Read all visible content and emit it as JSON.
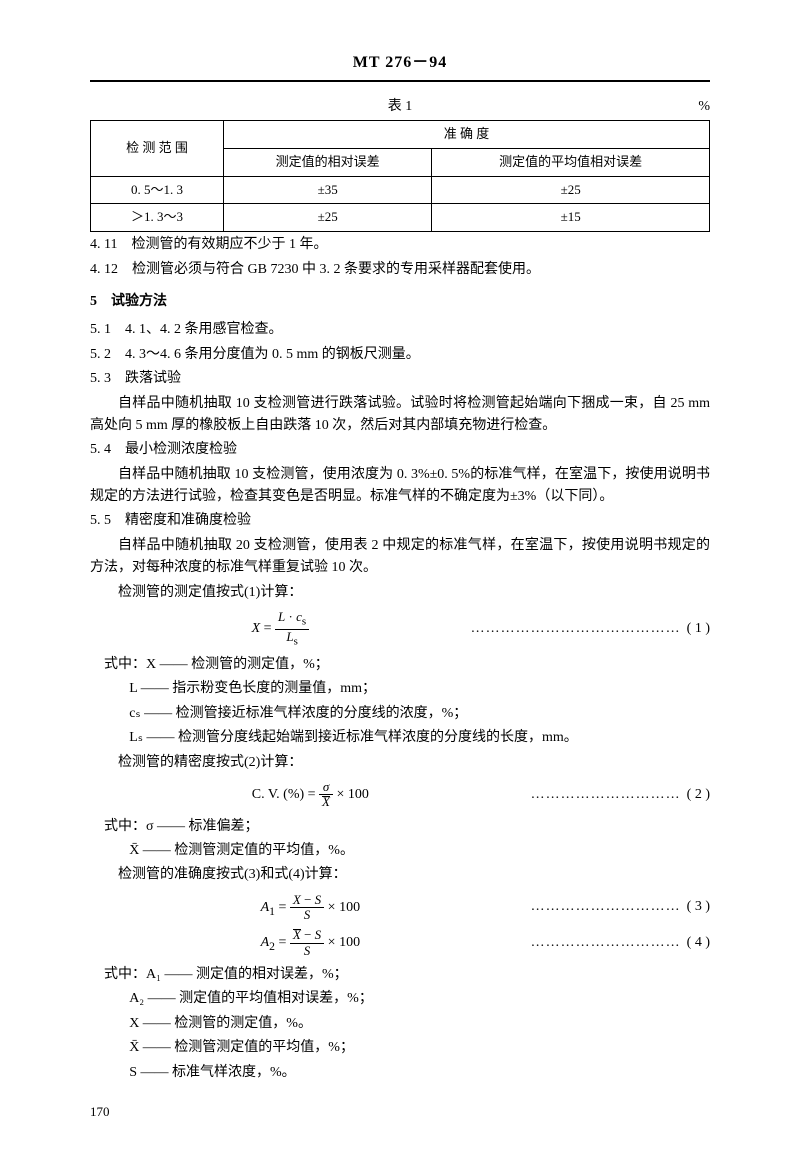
{
  "header": {
    "code": "MT 276－94"
  },
  "table1": {
    "caption": "表 1",
    "unit": "%",
    "h_range": "检 测 范 围",
    "h_acc": "准 确 度",
    "h_rel": "测定值的相对误差",
    "h_avg": "测定值的平均值相对误差",
    "r1c1": "0. 5～1. 3",
    "r1c2": "±35",
    "r1c3": "±25",
    "r2c1": "＞1. 3～3",
    "r2c2": "±25",
    "r2c3": "±15"
  },
  "p411": "4. 11　检测管的有效期应不少于 1 年。",
  "p412": "4. 12　检测管必须与符合 GB 7230 中 3. 2 条要求的专用采样器配套使用。",
  "s5": "5　试验方法",
  "p51": "5. 1　4. 1、4. 2 条用感官检查。",
  "p52": "5. 2　4. 3～4. 6 条用分度值为 0. 5 mm 的钢板尺测量。",
  "p53": "5. 3　跌落试验",
  "p53b": "自样品中随机抽取 10 支检测管进行跌落试验。试验时将检测管起始端向下捆成一束，自 25 mm 高处向 5 mm 厚的橡胶板上自由跌落 10 次，然后对其内部填充物进行检查。",
  "p54": "5. 4　最小检测浓度检验",
  "p54b": "自样品中随机抽取 10 支检测管，使用浓度为 0. 3%±0. 5%的标准气样，在室温下，按使用说明书规定的方法进行试验，检查其变色是否明显。标准气样的不确定度为±3%（以下同）。",
  "p55": "5. 5　精密度和准确度检验",
  "p55b": "自样品中随机抽取 20 支检测管，使用表 2 中规定的标准气样，在室温下，按使用说明书规定的方法，对每种浓度的标准气样重复试验 10 次。",
  "p55c": "检测管的测定值按式(1)计算：",
  "eq1_no": "( 1 )",
  "defs_intro": "式中：X —— 检测管的测定值，%；",
  "defL": "L —— 指示粉变色长度的测量值，mm；",
  "defcs": "cₛ —— 检测管接近标准气样浓度的分度线的浓度，%；",
  "defLs": "Lₛ —— 检测管分度线起始端到接近标准气样浓度的分度线的长度，mm。",
  "p_prec": "检测管的精密度按式(2)计算：",
  "eq2_no": "( 2 )",
  "defs2_intro": "式中：σ —— 标准偏差；",
  "defXbar": "X̄ —— 检测管测定值的平均值，%。",
  "p_acc": "检测管的准确度按式(3)和式(4)计算：",
  "eq3_no": "( 3 )",
  "eq4_no": "( 4 )",
  "defs3_intro": "式中：A₁ —— 测定值的相对误差，%；",
  "defA2": "A₂ —— 测定值的平均值相对误差，%；",
  "defX": "X —— 检测管的测定值，%。",
  "defXbar2": "X̄ —— 检测管测定值的平均值，%；",
  "defS": "S —— 标准气样浓度，%。",
  "page": "170"
}
